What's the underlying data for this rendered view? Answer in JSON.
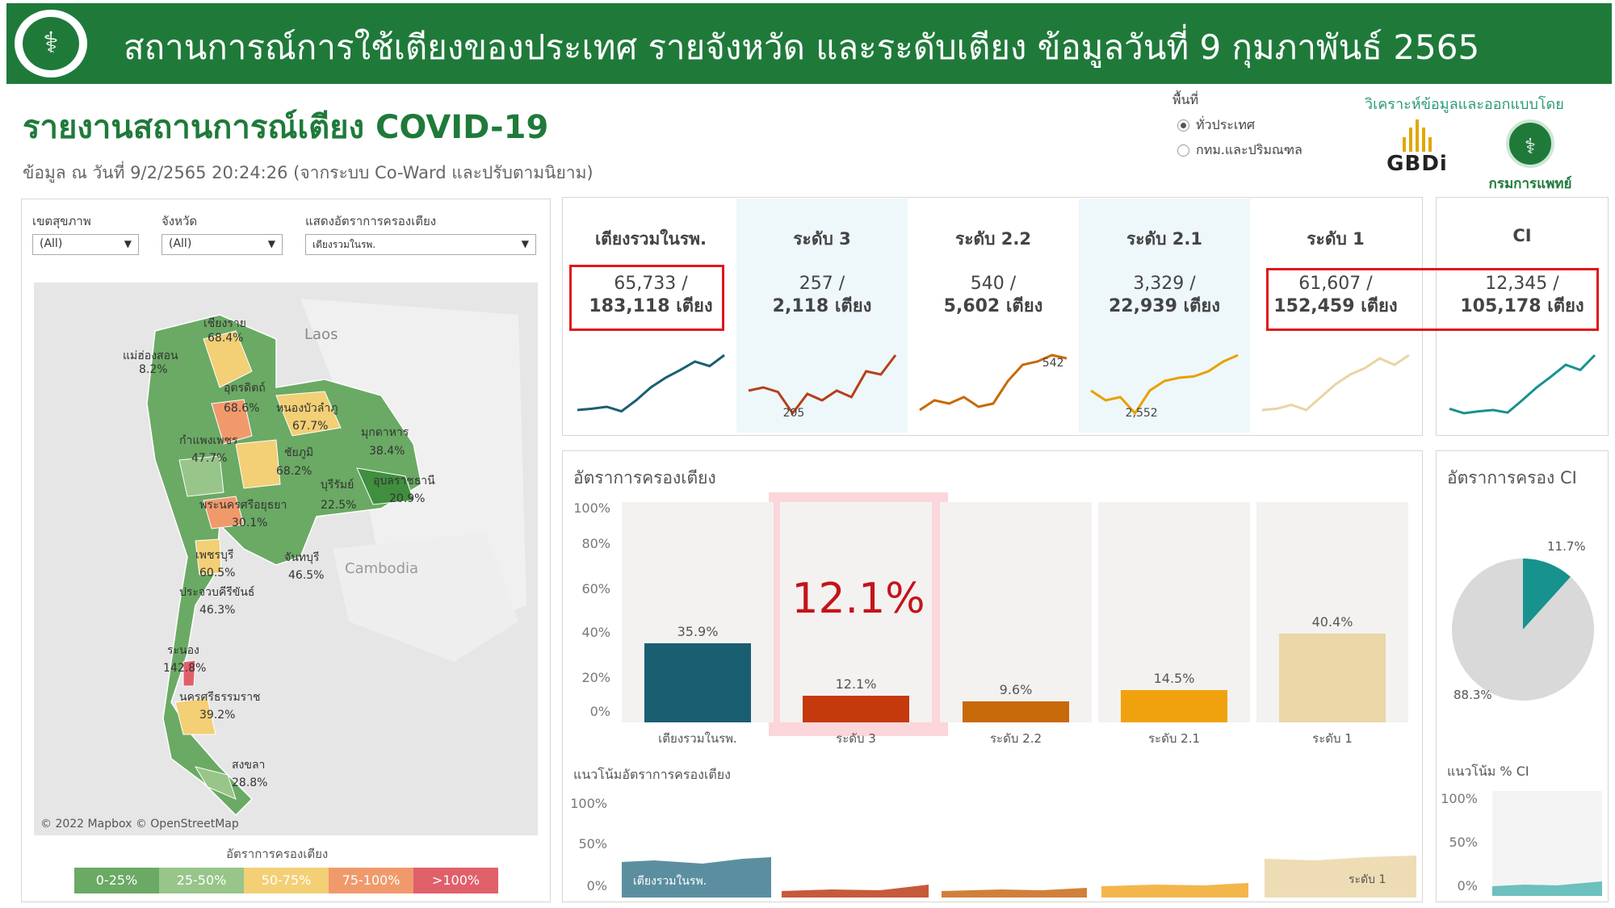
{
  "banner": {
    "title": "สถานการณ์การใช้เตียงของประเทศ รายจังหวัด และระดับเตียง  ข้อมูลวันที่ 9 กุมภาพันธ์ 2565"
  },
  "report": {
    "title": "รายงานสถานการณ์เตียง COVID-19",
    "subtitle": "ข้อมูล ณ วันที่ 9/2/2565 20:24:26  (จากระบบ Co-Ward และปรับตามนิยาม)"
  },
  "area_filter": {
    "label": "พื้นที่",
    "options": [
      "ทั่วประเทศ",
      "กทม.และปริมณฑล"
    ],
    "selected_index": 0
  },
  "partners": {
    "label": "วิเคราะห์ข้อมูลและออกแบบโดย",
    "gbdi_name": "GBDi",
    "dms_name": "กรมการแพทย์"
  },
  "filters": [
    {
      "label": "เขตสุขภาพ",
      "value": "(All)"
    },
    {
      "label": "จังหวัด",
      "value": "(All)"
    },
    {
      "label": "แสดงอัตราการครองเตียง",
      "value": "เตียงรวมในรพ."
    }
  ],
  "map": {
    "labels": {
      "laos": "Laos",
      "cambodia": "Cambodia",
      "chiang_rai": "เชียงราย",
      "chiang_rai_pct": "68.4%",
      "mae_hong_son": "แม่ฮ่องสอน",
      "mae_hong_son_pct": "8.2%",
      "uttaradit": "อุตรดิตถ์",
      "uttaradit_pct": "68.6%",
      "nong_bua": "หนองบัวลำภู",
      "nong_bua_pct": "67.7%",
      "mukdahan": "มุกดาหาร",
      "mukdahan_pct": "38.4%",
      "kamphaeng": "กำแพงเพชร",
      "kamphaeng_pct": "47.7%",
      "chaiyaphum": "ชัยภูมิ",
      "chaiyaphum_pct": "68.2%",
      "buriram": "บุรีรัมย์",
      "buriram_pct": "22.5%",
      "ubon": "อุบลราชธานี",
      "ubon_pct": "20.9%",
      "ayutthaya": "พระนครศรีอยุธยา",
      "ayutthaya_pct": "30.1%",
      "phetchaburi": "เพชรบุรี",
      "phetchaburi_pct": "60.5%",
      "chanthaburi": "จันทบุรี",
      "chanthaburi_pct": "46.5%",
      "prachuap": "ประจวบคีรีขันธ์",
      "prachuap_pct": "46.3%",
      "ranong": "ระนอง",
      "ranong_pct": "142.8%",
      "nakhon_si": "นครศรีธรรมราช",
      "nakhon_si_pct": "39.2%",
      "songkhla": "สงขลา",
      "songkhla_pct": "28.8%"
    },
    "credit": "© 2022 Mapbox  © OpenStreetMap",
    "legend_title": "อัตราการครองเตียง",
    "legend": [
      {
        "label": "0-25%",
        "color": "#6aaa64"
      },
      {
        "label": "25-50%",
        "color": "#98c58a"
      },
      {
        "label": "50-75%",
        "color": "#f3cf75"
      },
      {
        "label": "75-100%",
        "color": "#f09a6c"
      },
      {
        "label": ">100%",
        "color": "#e0606a"
      }
    ]
  },
  "kpis": [
    {
      "name": "เตียงรวมในรพ.",
      "used": "65,733 /",
      "total": "183,118 เตียง",
      "color": "#1a5e72",
      "trend": [
        0.1,
        0.12,
        0.15,
        0.08,
        0.25,
        0.45,
        0.6,
        0.72,
        0.85,
        0.78,
        0.95
      ],
      "trend_label": ""
    },
    {
      "name": "ระดับ 3",
      "used": "257 /",
      "total": "2,118 เตียง",
      "color": "#b5401a",
      "trend": [
        0.4,
        0.45,
        0.38,
        0.05,
        0.35,
        0.25,
        0.4,
        0.3,
        0.7,
        0.65,
        0.95
      ],
      "trend_label": "205"
    },
    {
      "name": "ระดับ 2.2",
      "used": "540 /",
      "total": "5,602 เตียง",
      "color": "#c8690a",
      "trend": [
        0.1,
        0.25,
        0.2,
        0.3,
        0.15,
        0.2,
        0.55,
        0.8,
        0.85,
        0.95,
        0.9
      ],
      "trend_label": "542"
    },
    {
      "name": "ระดับ 2.1",
      "used": "3,329 /",
      "total": "22,939 เตียง",
      "color": "#e8a100",
      "trend": [
        0.4,
        0.25,
        0.3,
        0.05,
        0.4,
        0.55,
        0.6,
        0.62,
        0.7,
        0.85,
        0.95
      ],
      "trend_label": "2,552"
    },
    {
      "name": "ระดับ 1",
      "used": "61,607 /",
      "total": "152,459 เตียง",
      "color": "#e9d4a4",
      "trend": [
        0.1,
        0.12,
        0.18,
        0.1,
        0.3,
        0.5,
        0.65,
        0.75,
        0.9,
        0.8,
        0.95
      ],
      "trend_label": ""
    },
    {
      "name": "CI",
      "used": "12,345 /",
      "total": "105,178 เตียง",
      "color": "#17928f",
      "trend": [
        0.12,
        0.05,
        0.08,
        0.1,
        0.06,
        0.25,
        0.45,
        0.62,
        0.8,
        0.72,
        0.95
      ],
      "trend_label": ""
    }
  ],
  "occupancy": {
    "title": "อัตราการครองเตียง",
    "highlight_value": "12.1%",
    "axis": [
      "100%",
      "80%",
      "60%",
      "40%",
      "20%",
      "0%"
    ],
    "trend_title": "แนวโน้มอัตราการครองเตียง",
    "trend_axis": [
      "100%",
      "50%",
      "0%"
    ],
    "trend_label_first": "เตียงรวมในรพ.",
    "trend_label_last": "ระดับ 1"
  },
  "ci_panel": {
    "title": "อัตราการครอง CI",
    "pie_used_label": "11.7%",
    "pie_free_label": "88.3%",
    "trend_title": "แนวโน้ม % CI",
    "trend_axis": [
      "100%",
      "50%",
      "0%"
    ]
  },
  "chart_data": [
    {
      "type": "bar",
      "title": "อัตราการครองเตียง",
      "categories": [
        "เตียงรวมในรพ.",
        "ระดับ 3",
        "ระดับ 2.2",
        "ระดับ 2.1",
        "ระดับ 1"
      ],
      "values": [
        35.9,
        12.1,
        9.6,
        14.5,
        40.4
      ],
      "value_labels": [
        "35.9%",
        "12.1%",
        "9.6%",
        "14.5%",
        "40.4%"
      ],
      "colors": [
        "#1a5e72",
        "#c43a0c",
        "#c8690a",
        "#f0a20e",
        "#ead6a6"
      ],
      "ylim": [
        0,
        100
      ]
    },
    {
      "type": "pie",
      "title": "อัตราการครอง CI",
      "labels": [
        "11.7%",
        "88.3%"
      ],
      "values": [
        11.7,
        88.3
      ],
      "colors": [
        "#17928f",
        "#d9d9d9"
      ]
    }
  ]
}
